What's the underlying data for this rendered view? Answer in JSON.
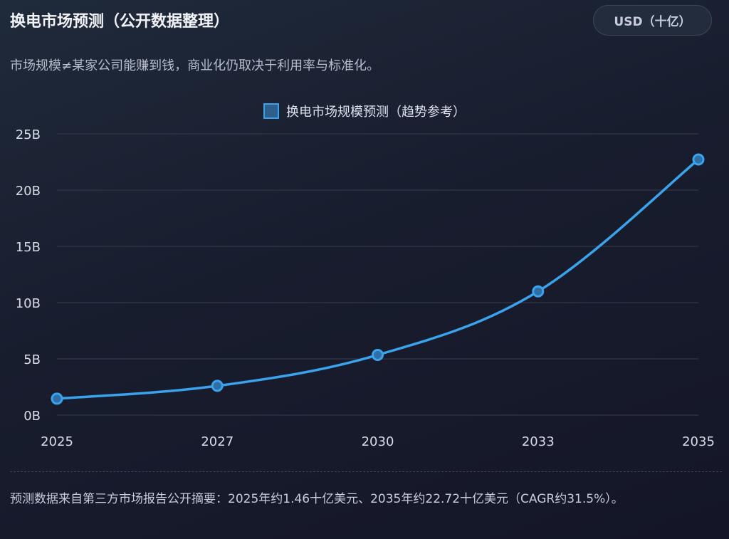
{
  "header": {
    "title": "换电市场预测（公开数据整理）",
    "unit_button": "USD（十亿）",
    "subtitle": "市场规模≠某家公司能赚到钱，商业化仍取决于利用率与标准化。"
  },
  "chart_data": {
    "type": "line",
    "categories": [
      "2025",
      "2027",
      "2030",
      "2033",
      "2035"
    ],
    "series": [
      {
        "name": "换电市场规模预测（趋势参考）",
        "values": [
          1.46,
          2.6,
          5.35,
          11.0,
          22.72
        ],
        "color": "#3aa3ec"
      }
    ],
    "ylim": [
      0,
      25
    ],
    "yticks": [
      0,
      5,
      10,
      15,
      20,
      25
    ],
    "ytick_labels": [
      "0B",
      "5B",
      "10B",
      "15B",
      "20B",
      "25B"
    ],
    "legend": "top-center",
    "grid": true,
    "title": "",
    "xlabel": "",
    "ylabel": ""
  },
  "footer": {
    "note": "预测数据来自第三方市场报告公开摘要：2025年约1.46十亿美元、2035年约22.72十亿美元（CAGR约31.5%）。"
  }
}
